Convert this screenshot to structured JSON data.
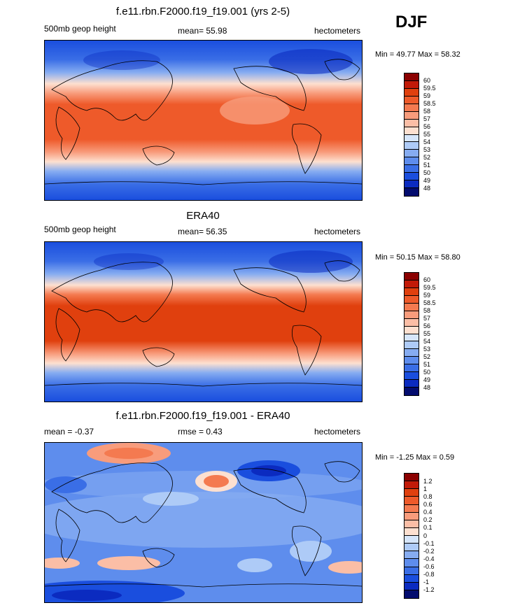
{
  "season": "DJF",
  "panels": [
    {
      "title": "f.e11.rbn.F2000.f19_f19.001 (yrs 2-5)",
      "left_label": "500mb geop height",
      "center_label": "mean=  55.98",
      "right_label": "hectometers",
      "minmax": "Min =  49.77 Max =  58.32",
      "scale": "abs"
    },
    {
      "title": "ERA40",
      "left_label": "500mb geop height",
      "center_label": "mean=  56.35",
      "right_label": "hectometers",
      "minmax": "Min =  50.15 Max =  58.80",
      "scale": "abs"
    },
    {
      "title": "f.e11.rbn.F2000.f19_f19.001 - ERA40",
      "left_label": "mean =  -0.37",
      "center_label": "rmse =   0.43",
      "right_label": "hectometers",
      "minmax": "Min =  -1.25 Max =   0.59",
      "scale": "diff"
    }
  ],
  "colorbars": {
    "abs": {
      "labels": [
        "60",
        "59.5",
        "59",
        "58.5",
        "58",
        "57",
        "56",
        "55",
        "54",
        "53",
        "52",
        "51",
        "50",
        "49",
        "48"
      ],
      "colors": [
        "#8b0000",
        "#c21a08",
        "#e0400e",
        "#ee5a2a",
        "#f47a50",
        "#f89c7c",
        "#fbbea6",
        "#fde0d0",
        "#d6e6fb",
        "#aecbf7",
        "#86acf1",
        "#5e8ded",
        "#3a6ee6",
        "#1a4ede",
        "#0b2bc0",
        "#030c6e"
      ]
    },
    "diff": {
      "labels": [
        "1.2",
        "1",
        "0.8",
        "0.6",
        "0.4",
        "0.2",
        "0.1",
        "0",
        "-0.1",
        "-0.2",
        "-0.4",
        "-0.6",
        "-0.8",
        "-1",
        "-1.2"
      ],
      "colors": [
        "#8b0000",
        "#c21a08",
        "#e0400e",
        "#ee5a2a",
        "#f47a50",
        "#f89c7c",
        "#fbbea6",
        "#fde0d0",
        "#d6e6fb",
        "#aecbf7",
        "#86acf1",
        "#5e8ded",
        "#3a6ee6",
        "#1a4ede",
        "#0b2bc0",
        "#030c6e"
      ]
    }
  }
}
